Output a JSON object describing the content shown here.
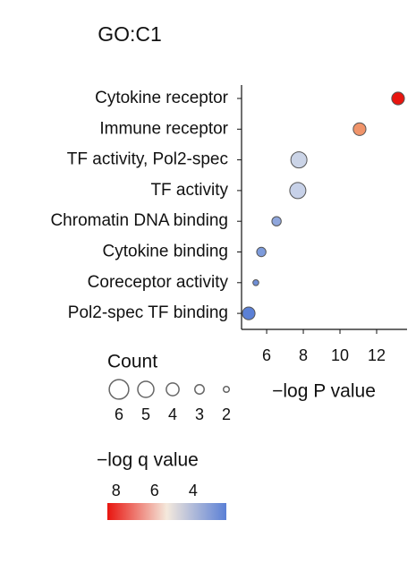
{
  "chart_data": {
    "type": "scatter",
    "title": "GO:C1",
    "categories": [
      "Cytokine receptor",
      "Immune receptor",
      "TF activity, Pol2-spec",
      "TF activity",
      "Chromatin DNA binding",
      "Cytokine binding",
      "Coreceptor activity",
      "Pol2-spec TF binding"
    ],
    "values": [
      13.17,
      11.07,
      7.76,
      7.7,
      6.54,
      5.71,
      5.41,
      5.02
    ],
    "sizes": [
      4,
      4,
      5,
      5,
      3,
      3,
      2,
      4
    ],
    "colors": [
      "#e8150f",
      "#f0946a",
      "#cbd4e7",
      "#c7d1e8",
      "#8fa6dc",
      "#7d9bdb",
      "#6f8fd6",
      "#5b80d6"
    ],
    "xlabel": "−log P value",
    "xlim": [
      4.63,
      13.66
    ],
    "xticks": [
      6,
      8,
      10,
      12
    ],
    "size_legend": {
      "title": "Count",
      "values": [
        6,
        5,
        4,
        3,
        2
      ]
    },
    "color_legend": {
      "title": "−log q value",
      "lim": [
        8.45,
        2.28
      ],
      "ticks": [
        8,
        6,
        4
      ],
      "colors": [
        "#e8150f",
        "#f4e9dc",
        "#5b80d6"
      ]
    }
  }
}
